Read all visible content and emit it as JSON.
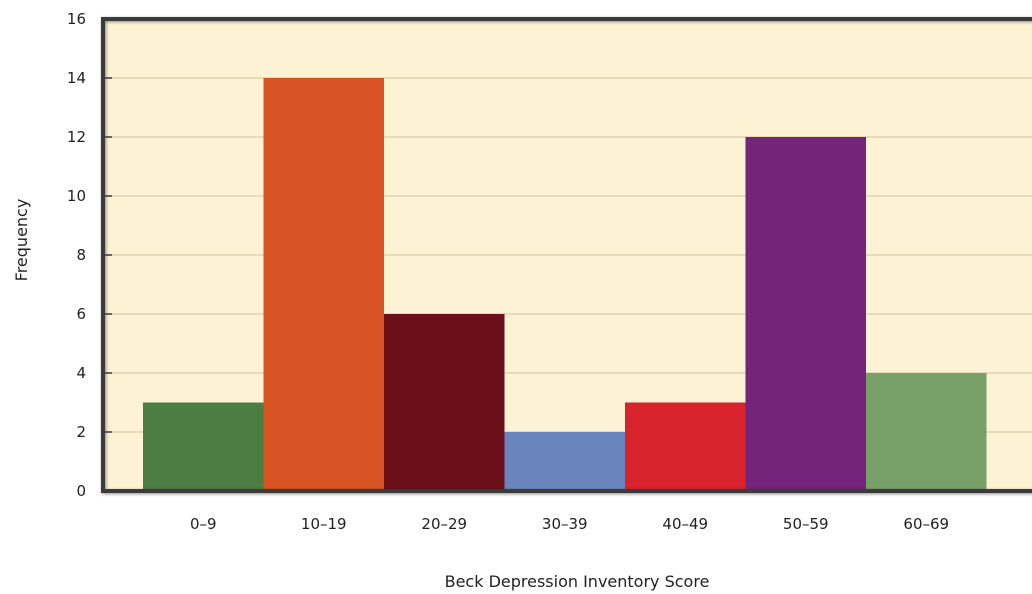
{
  "chart_data": {
    "type": "bar",
    "title": "",
    "xlabel": "Beck Depression Inventory Score",
    "ylabel": "Frequency",
    "categories": [
      "0–9",
      "10–19",
      "20–29",
      "30–39",
      "40–49",
      "50–59",
      "60–69"
    ],
    "values": [
      3,
      14,
      6,
      2,
      3,
      12,
      4
    ],
    "ylim": [
      0,
      16
    ],
    "yticks": [
      "0",
      "2",
      "4",
      "6",
      "8",
      "10",
      "12",
      "14",
      "16"
    ],
    "grid": true,
    "legend": "none",
    "colors": {
      "plot_background": "#fdf3d4",
      "grid": "#d9cfa8",
      "frame": "#3a3a3a",
      "bars": [
        "#4c7d42",
        "#d85323",
        "#6b0f1a",
        "#6a85bd",
        "#d9232c",
        "#72257a",
        "#78a069"
      ]
    }
  }
}
